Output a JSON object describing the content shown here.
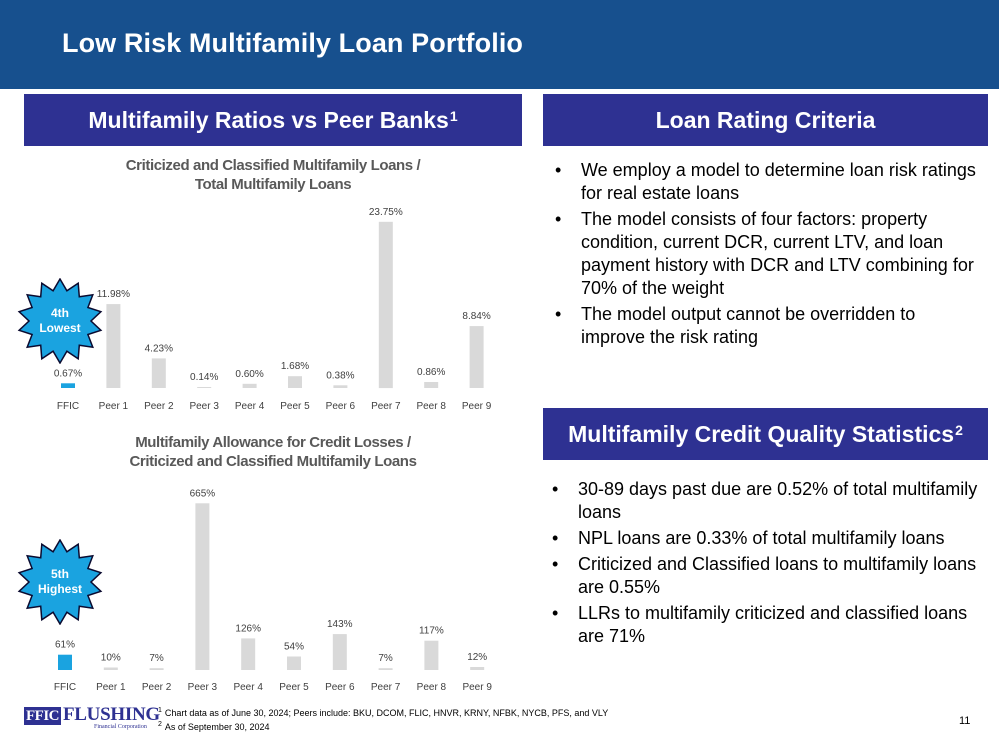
{
  "title": "Low Risk Multifamily Loan Portfolio",
  "left_header": {
    "text": "Multifamily Ratios vs Peer Banks",
    "sup": "1"
  },
  "criteria_header": {
    "text": "Loan Rating Criteria"
  },
  "stats_header": {
    "text": "Multifamily Credit Quality Statistics",
    "sup": "2"
  },
  "criteria_bullets": [
    "We employ a model to determine loan risk ratings for real estate loans",
    "The model consists of four factors: property condition, current DCR, current LTV, and loan payment history with DCR and LTV combining for 70% of the weight",
    "The model output cannot be overridden to improve the risk rating"
  ],
  "stats_bullets": [
    "30-89 days past due are 0.52% of total multifamily loans",
    "NPL loans are 0.33% of total multifamily loans",
    "Criticized and Classified loans to multifamily loans are 0.55%",
    "LLRs to multifamily criticized and classified loans are 71%"
  ],
  "badges": [
    {
      "line1": "4th",
      "line2": "Lowest"
    },
    {
      "line1": "5th",
      "line2": "Highest"
    }
  ],
  "colors": {
    "highlight": "#1aa3e0",
    "peer": "#d9d9d9",
    "header": "#2e3192",
    "title_bar": "#17508e",
    "badge": "#1aa3e0"
  },
  "chart_data": [
    {
      "type": "bar",
      "title_line1": "Criticized and Classified Multifamily Loans /",
      "title_line2": "Total Multifamily Loans",
      "categories": [
        "FFIC",
        "Peer 1",
        "Peer 2",
        "Peer 3",
        "Peer 4",
        "Peer 5",
        "Peer 6",
        "Peer 7",
        "Peer 8",
        "Peer 9"
      ],
      "values": [
        0.67,
        11.98,
        4.23,
        0.14,
        0.6,
        1.68,
        0.38,
        23.75,
        0.86,
        8.84
      ],
      "labels": [
        "0.67%",
        "11.98%",
        "4.23%",
        "0.14%",
        "0.60%",
        "1.68%",
        "0.38%",
        "23.75%",
        "0.86%",
        "8.84%"
      ],
      "highlight_index": 0,
      "ylim": [
        0,
        24
      ]
    },
    {
      "type": "bar",
      "title_line1": "Multifamily Allowance for Credit Losses /",
      "title_line2": "Criticized and Classified Multifamily Loans",
      "categories": [
        "FFIC",
        "Peer 1",
        "Peer 2",
        "Peer 3",
        "Peer 4",
        "Peer 5",
        "Peer 6",
        "Peer 7",
        "Peer 8",
        "Peer 9"
      ],
      "values": [
        61,
        10,
        7,
        665,
        126,
        54,
        143,
        7,
        117,
        12
      ],
      "labels": [
        "61%",
        "10%",
        "7%",
        "665%",
        "126%",
        "54%",
        "143%",
        "7%",
        "117%",
        "12%"
      ],
      "highlight_index": 0,
      "ylim": [
        0,
        670
      ]
    }
  ],
  "footer": {
    "logo_ffic": "FFIC",
    "logo_name": "FLUSHING",
    "logo_sub": "Financial Corporation",
    "footnote1_mark": "1",
    "footnote1": "Chart data as of June 30, 2024; Peers include: BKU, DCOM, FLIC, HNVR, KRNY, NFBK, NYCB, PFS, and VLY",
    "footnote2_mark": "2",
    "footnote2": "As of September 30, 2024",
    "page_number": "11"
  }
}
